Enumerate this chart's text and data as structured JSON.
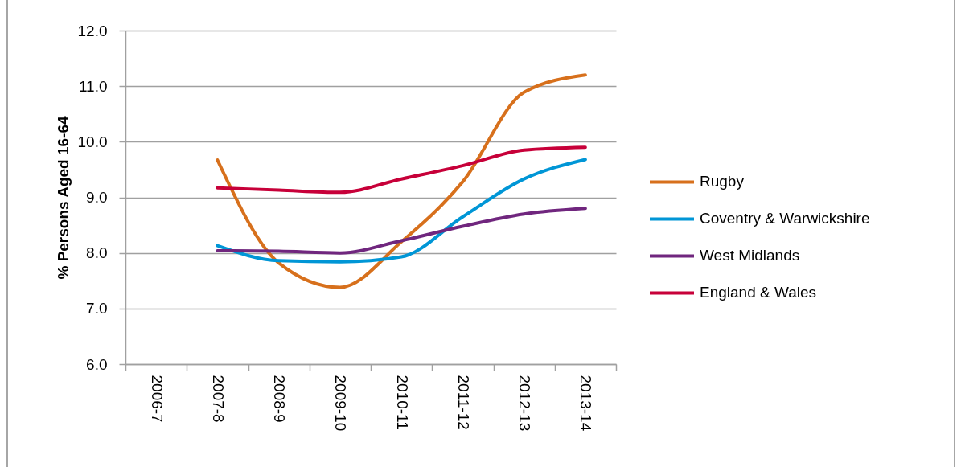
{
  "chart_data": {
    "type": "line",
    "ylabel": "% Persons Aged 16-64",
    "categories": [
      "2006-7",
      "2007-8",
      "2008-9",
      "2009-10",
      "2010-11",
      "2011-12",
      "2012-13",
      "2013-14"
    ],
    "series": [
      {
        "name": "Rugby",
        "color": "#d7701c",
        "values": [
          null,
          9.67,
          7.82,
          7.38,
          8.2,
          9.28,
          10.89,
          11.2
        ]
      },
      {
        "name": "Coventry & Warwickshire",
        "color": "#0096d6",
        "values": [
          null,
          8.13,
          7.86,
          7.84,
          7.93,
          8.65,
          9.33,
          9.68
        ]
      },
      {
        "name": "West Midlands",
        "color": "#70267e",
        "values": [
          null,
          8.04,
          8.03,
          8.0,
          8.22,
          8.48,
          8.7,
          8.8
        ]
      },
      {
        "name": "England & Wales",
        "color": "#c70039",
        "values": [
          null,
          9.17,
          9.13,
          9.09,
          9.33,
          9.57,
          9.85,
          9.9
        ]
      }
    ],
    "ylim": [
      6,
      12
    ],
    "yticks": [
      {
        "value": 6,
        "label": "6.0"
      },
      {
        "value": 7,
        "label": "7.0"
      },
      {
        "value": 8,
        "label": "8.0"
      },
      {
        "value": 9,
        "label": "9.0"
      },
      {
        "value": 10,
        "label": "10.0"
      },
      {
        "value": 11,
        "label": "11.0"
      },
      {
        "value": 12,
        "label": "12.0"
      }
    ],
    "grid": "y",
    "legend": "right"
  }
}
